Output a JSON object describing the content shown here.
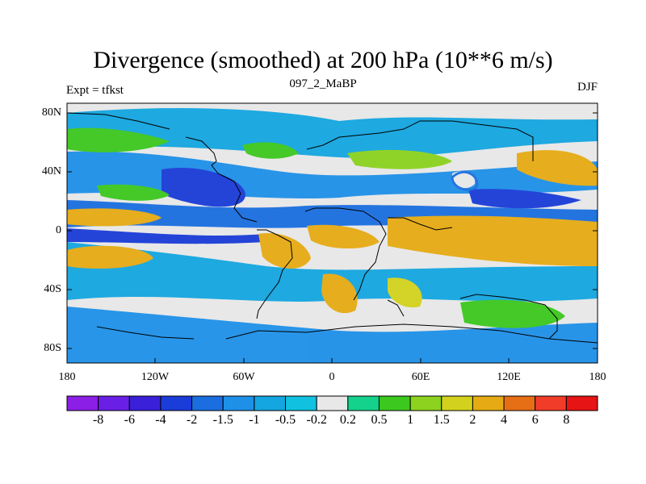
{
  "header": {
    "title": "Divergence (smoothed) at 200 hPa (10**6 m/s)",
    "experiment": "Expt = tfkst",
    "run_id": "097_2_MaBP",
    "season": "DJF"
  },
  "axes": {
    "lat_labels": [
      "80N",
      "40N",
      "0",
      "40S",
      "80S"
    ],
    "lon_labels": [
      "180",
      "120W",
      "60W",
      "0",
      "60E",
      "120E",
      "180"
    ]
  },
  "colorbar": {
    "labels": [
      "-8",
      "-6",
      "-4",
      "-2",
      "-1.5",
      "-1",
      "-0.5",
      "-0.2",
      "0.2",
      "0.5",
      "1",
      "1.5",
      "2",
      "4",
      "6",
      "8"
    ],
    "colors": [
      "#8c1fe6",
      "#6a1fe6",
      "#3a20d8",
      "#1a3cd8",
      "#1a6ee0",
      "#1e90e8",
      "#14a6e0",
      "#10c2e0",
      "#e8e8e8",
      "#14d28c",
      "#3cc81e",
      "#8cd21e",
      "#d2d21e",
      "#e6aa14",
      "#e66e14",
      "#f03c28",
      "#e61414"
    ]
  }
}
